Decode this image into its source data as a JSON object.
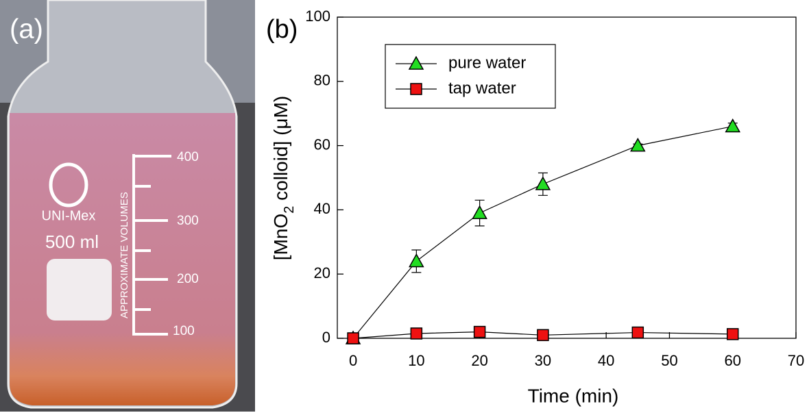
{
  "panel_a": {
    "label": "(a)",
    "brand": "UNI-Mex",
    "volume": "500 ml",
    "scale_text": "APPROXIMATE VOLUMES",
    "graduations": [
      "400",
      "300",
      "200",
      "100"
    ]
  },
  "chart_data": {
    "type": "line",
    "panel_label": "(b)",
    "xlabel": "Time (min)",
    "ylabel": [
      "[MnO",
      "2",
      " colloid] (μM)"
    ],
    "x": [
      0,
      10,
      20,
      30,
      45,
      60
    ],
    "xlim": [
      -2.5,
      70
    ],
    "xticks": [
      0,
      10,
      20,
      30,
      40,
      50,
      60,
      70
    ],
    "ylim": [
      0,
      100
    ],
    "yticks": [
      0,
      20,
      40,
      60,
      80,
      100
    ],
    "legend": "upper left",
    "series": [
      {
        "name": "pure water",
        "color": "#22dd22",
        "marker": "triangle",
        "values": [
          0,
          24,
          39,
          48,
          60,
          66
        ],
        "errors": [
          0,
          3.5,
          4,
          3.5,
          0.5,
          1
        ]
      },
      {
        "name": "tap water",
        "color": "#ee1111",
        "marker": "square",
        "values": [
          0,
          1.5,
          2,
          1,
          1.8,
          1.3
        ],
        "errors": [
          0,
          0.5,
          0.5,
          0.4,
          0.4,
          0.3
        ]
      }
    ]
  }
}
